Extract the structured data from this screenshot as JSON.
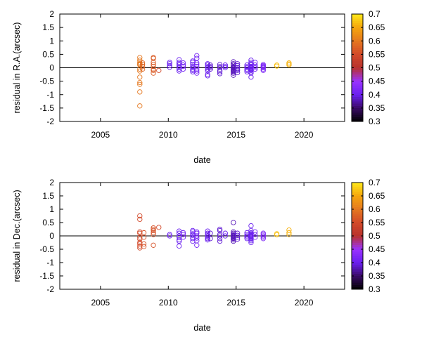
{
  "chart_data": [
    {
      "type": "scatter",
      "xlabel": "date",
      "ylabel": "residual in R.A.(arcsec)",
      "xlim": [
        2002,
        2023
      ],
      "ylim": [
        -2,
        2
      ],
      "xticks": [
        2005,
        2010,
        2015,
        2020
      ],
      "yticks": [
        -2,
        -1.5,
        -1,
        -0.5,
        0,
        0.5,
        1,
        1.5,
        2
      ],
      "colorbar": {
        "range": [
          0.3,
          0.7
        ],
        "ticks": [
          "0.3",
          "0.35",
          "0.4",
          "0.45",
          "0.5",
          "0.55",
          "0.6",
          "0.65",
          "0.7"
        ],
        "colors": [
          "#000000",
          "#3a0a66",
          "#6a1ff0",
          "#9a33ff",
          "#b8322b",
          "#d2492a",
          "#e5781f",
          "#f5a60d",
          "#ffe81a"
        ]
      },
      "series": [
        {
          "x": 2007.9,
          "c": 0.6,
          "y": [
            0.38,
            0.28,
            0.2,
            0.15,
            0.12,
            0.1,
            -0.05,
            -0.12,
            -0.35,
            -0.55,
            -0.62,
            -0.9,
            -1.42
          ]
        },
        {
          "x": 2008.1,
          "c": 0.58,
          "y": [
            0.18,
            0.12,
            0.05,
            -0.05
          ]
        },
        {
          "x": 2008.9,
          "c": 0.57,
          "y": [
            0.38,
            0.35,
            0.2,
            0.12,
            0.05,
            -0.05,
            -0.1,
            -0.2
          ]
        },
        {
          "x": 2009.3,
          "c": 0.55,
          "y": [
            -0.1
          ]
        },
        {
          "x": 2010.1,
          "c": 0.4,
          "y": [
            0.2,
            0.15,
            0.08,
            0.02
          ]
        },
        {
          "x": 2010.8,
          "c": 0.4,
          "y": [
            0.3,
            0.2,
            0.15,
            0.1,
            0.05,
            0.0,
            -0.05,
            -0.12
          ]
        },
        {
          "x": 2011.1,
          "c": 0.41,
          "y": [
            0.18,
            0.1,
            0.05,
            -0.05
          ]
        },
        {
          "x": 2011.8,
          "c": 0.4,
          "y": [
            0.25,
            0.2,
            0.12,
            0.05,
            0.0,
            -0.05,
            -0.1,
            -0.15
          ]
        },
        {
          "x": 2012.1,
          "c": 0.41,
          "y": [
            0.45,
            0.35,
            0.18,
            0.12,
            0.05,
            -0.05,
            -0.12,
            -0.2
          ]
        },
        {
          "x": 2012.9,
          "c": 0.4,
          "y": [
            0.15,
            0.1,
            0.05,
            0.0,
            -0.05,
            -0.12,
            -0.25,
            -0.3
          ]
        },
        {
          "x": 2013.1,
          "c": 0.39,
          "y": [
            0.1,
            0.05,
            0.0,
            -0.05
          ]
        },
        {
          "x": 2013.8,
          "c": 0.39,
          "y": [
            0.12,
            0.05,
            0.0,
            -0.1,
            -0.15,
            -0.22
          ]
        },
        {
          "x": 2014.2,
          "c": 0.4,
          "y": [
            0.1,
            0.05,
            0.0
          ]
        },
        {
          "x": 2014.8,
          "c": 0.38,
          "y": [
            0.22,
            0.15,
            0.1,
            0.05,
            0.02,
            0.0,
            -0.02,
            -0.05,
            -0.08,
            -0.1,
            -0.12,
            -0.15,
            -0.2,
            -0.28
          ]
        },
        {
          "x": 2015.1,
          "c": 0.39,
          "y": [
            0.15,
            0.08,
            0.0,
            -0.05,
            -0.1,
            -0.18
          ]
        },
        {
          "x": 2015.8,
          "c": 0.4,
          "y": [
            0.1,
            0.05,
            0.0,
            -0.05,
            -0.1,
            -0.15
          ]
        },
        {
          "x": 2016.1,
          "c": 0.4,
          "y": [
            0.28,
            0.2,
            0.15,
            0.1,
            0.05,
            0.02,
            0.0,
            -0.02,
            -0.05,
            -0.08,
            -0.1,
            -0.15,
            -0.2,
            -0.35
          ]
        },
        {
          "x": 2016.4,
          "c": 0.41,
          "y": [
            0.2,
            0.1,
            0.05,
            0.0,
            -0.05
          ]
        },
        {
          "x": 2017.0,
          "c": 0.42,
          "y": [
            0.12,
            0.08,
            0.05,
            0.02,
            0.0,
            -0.05,
            -0.1
          ]
        },
        {
          "x": 2018.0,
          "c": 0.67,
          "y": [
            0.1,
            0.06
          ]
        },
        {
          "x": 2018.9,
          "c": 0.66,
          "y": [
            0.18,
            0.14,
            0.1
          ]
        }
      ]
    },
    {
      "type": "scatter",
      "xlabel": "date",
      "ylabel": "residual in Dec.(arcsec)",
      "xlim": [
        2002,
        2023
      ],
      "ylim": [
        -2,
        2
      ],
      "xticks": [
        2005,
        2010,
        2015,
        2020
      ],
      "yticks": [
        -2,
        -1.5,
        -1,
        -0.5,
        0,
        0.5,
        1,
        1.5,
        2
      ],
      "colorbar": {
        "range": [
          0.3,
          0.7
        ],
        "ticks": [
          "0.3",
          "0.35",
          "0.4",
          "0.45",
          "0.5",
          "0.55",
          "0.6",
          "0.65",
          "0.7"
        ],
        "colors": [
          "#000000",
          "#3a0a66",
          "#6a1ff0",
          "#9a33ff",
          "#b8322b",
          "#d2492a",
          "#e5781f",
          "#f5a60d",
          "#ffe81a"
        ]
      },
      "series": [
        {
          "x": 2007.9,
          "c": 0.55,
          "y": [
            0.75,
            0.62,
            0.15,
            0.1,
            -0.05,
            -0.12,
            -0.25,
            -0.3,
            -0.38,
            -0.45
          ]
        },
        {
          "x": 2008.2,
          "c": 0.56,
          "y": [
            0.12,
            -0.05,
            -0.3,
            -0.4
          ]
        },
        {
          "x": 2008.9,
          "c": 0.56,
          "y": [
            0.3,
            0.25,
            0.2,
            0.12,
            0.05,
            -0.35
          ]
        },
        {
          "x": 2009.3,
          "c": 0.55,
          "y": [
            0.32
          ]
        },
        {
          "x": 2010.1,
          "c": 0.4,
          "y": [
            0.05,
            0.0
          ]
        },
        {
          "x": 2010.8,
          "c": 0.4,
          "y": [
            0.18,
            0.1,
            0.0,
            -0.05,
            -0.15,
            -0.2,
            -0.38
          ]
        },
        {
          "x": 2011.1,
          "c": 0.41,
          "y": [
            0.12,
            0.05,
            -0.05
          ]
        },
        {
          "x": 2011.8,
          "c": 0.4,
          "y": [
            0.2,
            0.15,
            0.08,
            0.02,
            -0.05,
            -0.1,
            -0.2
          ]
        },
        {
          "x": 2012.1,
          "c": 0.41,
          "y": [
            0.15,
            0.1,
            0.0,
            -0.08,
            -0.18,
            -0.35
          ]
        },
        {
          "x": 2012.9,
          "c": 0.4,
          "y": [
            0.18,
            0.1,
            0.05,
            0.0,
            -0.05,
            -0.1,
            -0.15
          ]
        },
        {
          "x": 2013.1,
          "c": 0.39,
          "y": [
            0.1,
            -0.1
          ]
        },
        {
          "x": 2013.8,
          "c": 0.39,
          "y": [
            0.25,
            0.2,
            0.05,
            0.0,
            -0.1,
            -0.2
          ]
        },
        {
          "x": 2014.2,
          "c": 0.4,
          "y": [
            0.1,
            0.0
          ]
        },
        {
          "x": 2014.8,
          "c": 0.38,
          "y": [
            0.5,
            0.15,
            0.1,
            0.05,
            0.02,
            0.0,
            -0.02,
            -0.05,
            -0.08,
            -0.1,
            -0.15,
            -0.2
          ]
        },
        {
          "x": 2015.1,
          "c": 0.39,
          "y": [
            0.1,
            0.02,
            -0.05,
            -0.12
          ]
        },
        {
          "x": 2015.8,
          "c": 0.4,
          "y": [
            0.12,
            0.05,
            0.0,
            -0.05,
            -0.1
          ]
        },
        {
          "x": 2016.1,
          "c": 0.4,
          "y": [
            0.38,
            0.2,
            0.12,
            0.08,
            0.05,
            0.02,
            0.0,
            -0.02,
            -0.05,
            -0.08,
            -0.12,
            -0.18,
            -0.25
          ]
        },
        {
          "x": 2016.4,
          "c": 0.41,
          "y": [
            0.15,
            0.05,
            -0.05
          ]
        },
        {
          "x": 2017.0,
          "c": 0.42,
          "y": [
            0.1,
            0.05,
            0.0,
            -0.05,
            -0.1
          ]
        },
        {
          "x": 2018.0,
          "c": 0.67,
          "y": [
            0.08,
            0.04
          ]
        },
        {
          "x": 2018.9,
          "c": 0.66,
          "y": [
            0.22,
            0.12,
            0.05
          ]
        }
      ]
    }
  ]
}
